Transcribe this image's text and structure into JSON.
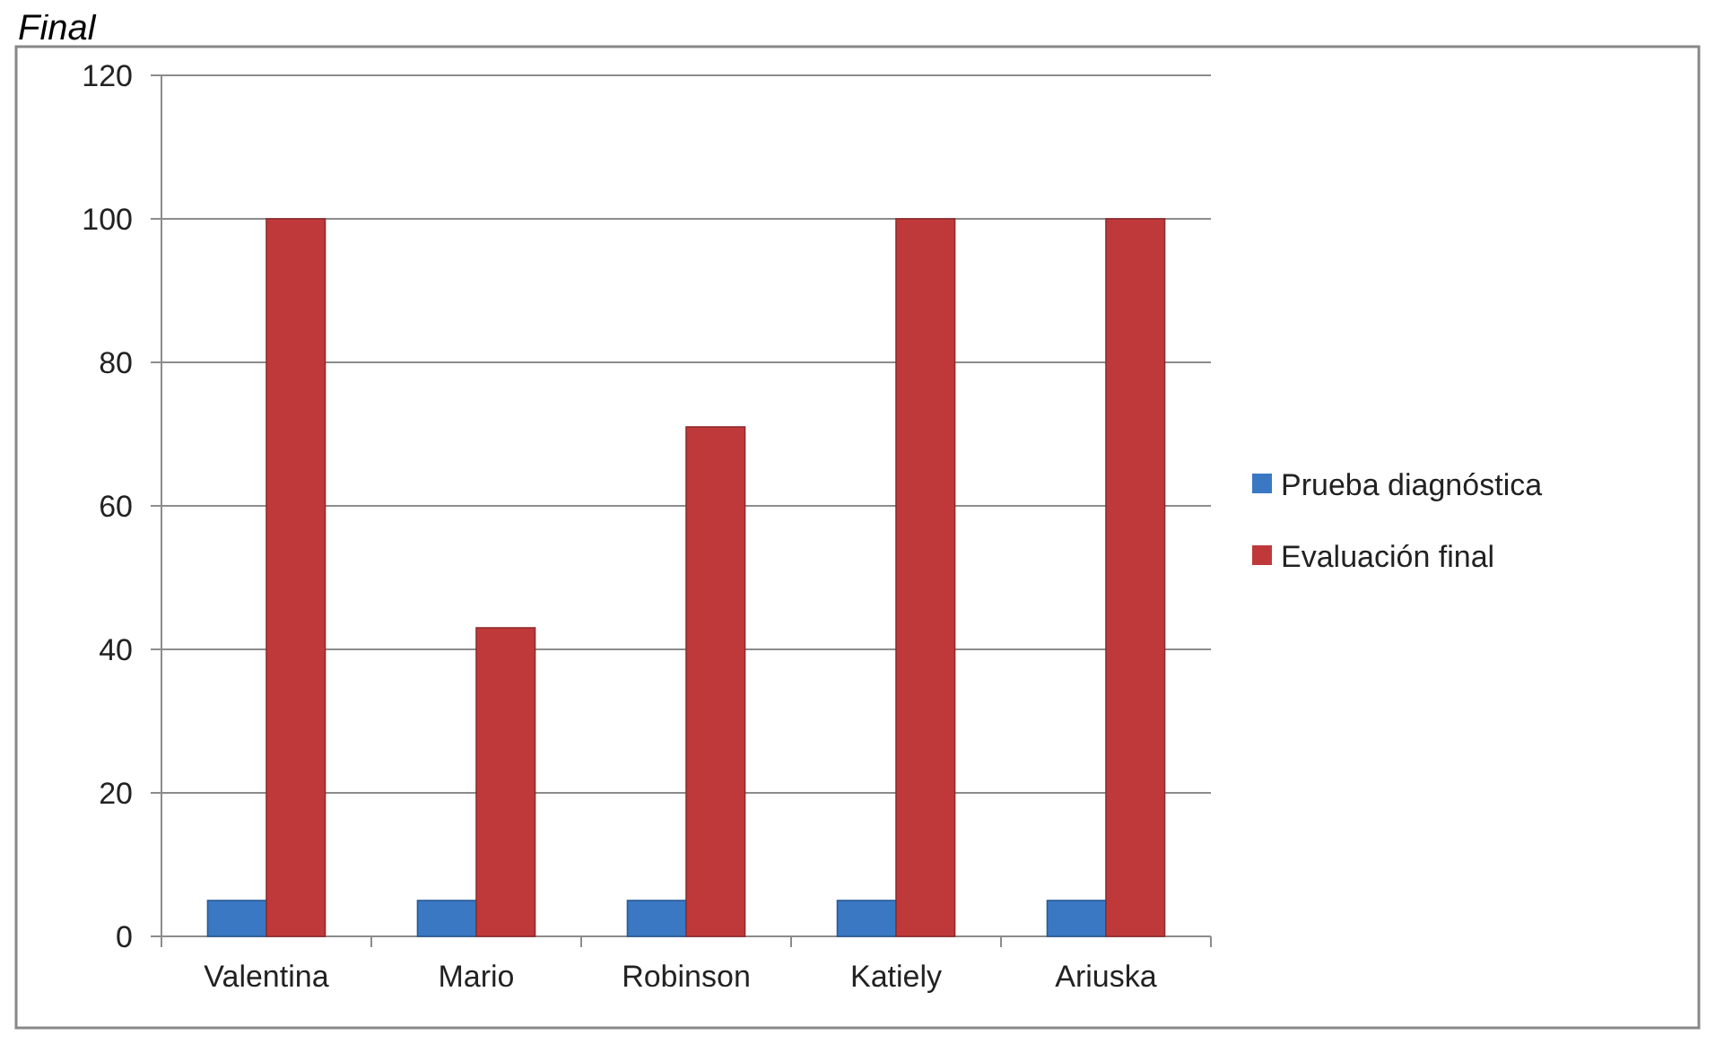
{
  "chart_data": {
    "type": "bar",
    "title": "Final",
    "categories": [
      "Valentina",
      "Mario",
      "Robinson",
      "Katiely",
      "Ariuska"
    ],
    "series": [
      {
        "name": "Prueba diagnóstica",
        "color": "#3a78c4",
        "values": [
          5,
          5,
          5,
          5,
          5
        ]
      },
      {
        "name": "Evaluación final",
        "color": "#c0393a",
        "values": [
          100,
          43,
          71,
          100,
          100
        ]
      }
    ],
    "ylim": [
      0,
      120
    ],
    "yticks": [
      0,
      20,
      40,
      60,
      80,
      100,
      120
    ],
    "grid": "y",
    "legend": "right"
  }
}
